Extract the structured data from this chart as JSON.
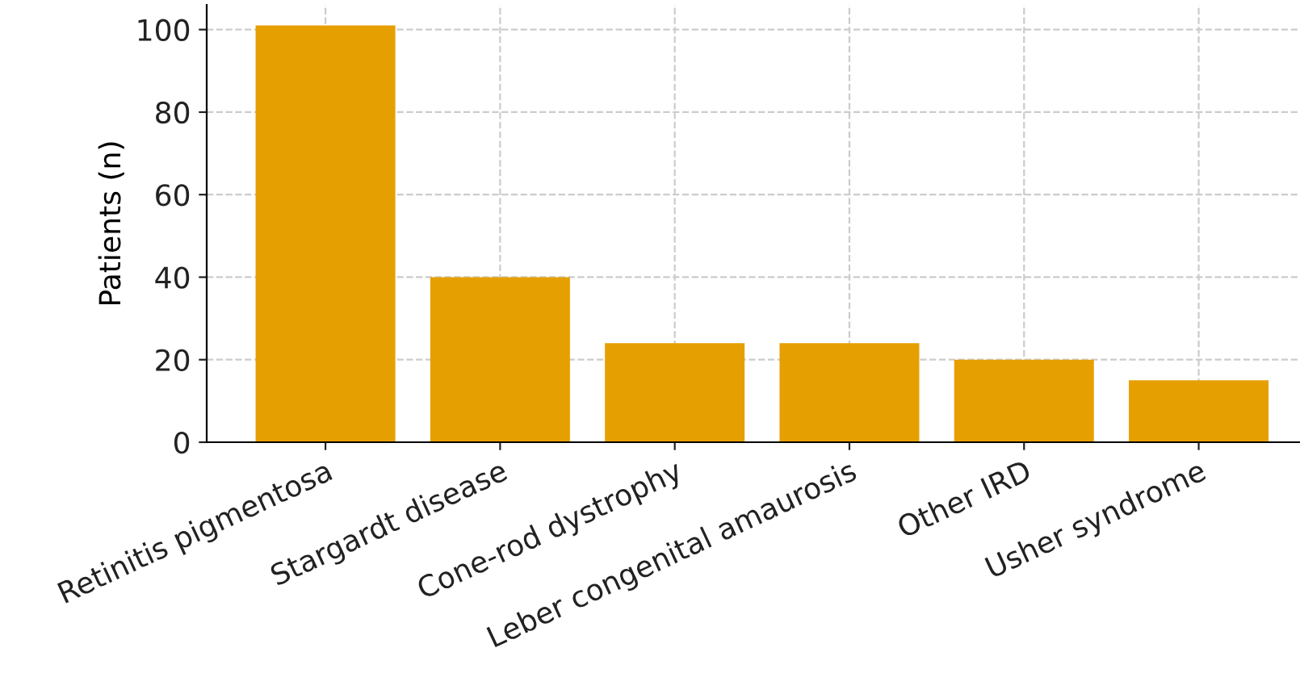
{
  "chart_data": {
    "type": "bar",
    "ylabel": "Patients (n)",
    "categories": [
      "Retinitis pigmentosa",
      "Stargardt disease",
      "Cone-rod dystrophy",
      "Leber congenital amaurosis",
      "Other IRD",
      "Usher syndrome"
    ],
    "values": [
      101,
      40,
      24,
      24,
      20,
      15
    ],
    "color": "#e69f00",
    "ylim": [
      0,
      106
    ],
    "yticks": [
      0,
      20,
      40,
      60,
      80,
      100
    ],
    "grid": true
  }
}
